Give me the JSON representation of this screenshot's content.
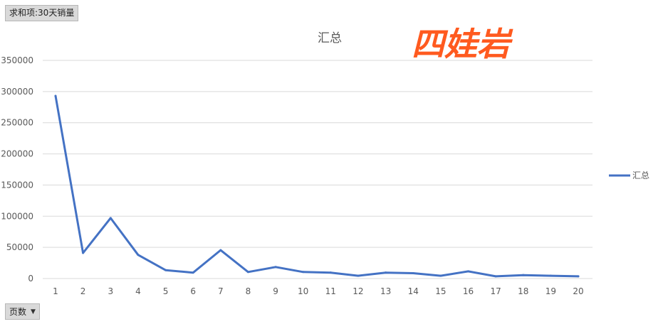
{
  "pivot": {
    "sum_field_label": "求和项:30天销量",
    "row_field_label": "页数"
  },
  "watermark_text": "四娃岩",
  "colors": {
    "series": "#4472c4",
    "grid": "#d9d9d9",
    "watermark": "#ff5a1f"
  },
  "chart_data": {
    "type": "line",
    "title": "汇总",
    "x": [
      1,
      2,
      3,
      4,
      5,
      6,
      7,
      8,
      9,
      10,
      11,
      12,
      13,
      14,
      15,
      16,
      17,
      18,
      19,
      20
    ],
    "series": [
      {
        "name": "汇总",
        "values": [
          293000,
          41000,
          97000,
          38000,
          13500,
          9500,
          45500,
          10500,
          18500,
          10500,
          9500,
          4500,
          9500,
          8500,
          4500,
          11500,
          3500,
          5500,
          4500,
          3500
        ]
      }
    ],
    "ylim": [
      0,
      350000
    ],
    "yticks": [
      0,
      50000,
      100000,
      150000,
      200000,
      250000,
      300000,
      350000
    ],
    "grid": true,
    "legend": "right"
  }
}
